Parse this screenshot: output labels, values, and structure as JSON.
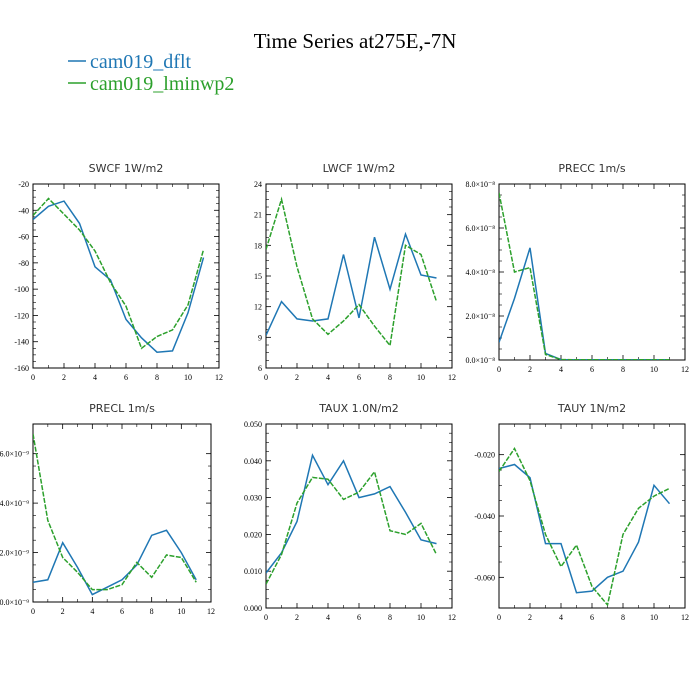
{
  "title": "Time Series at275E,-7N",
  "legend": [
    {
      "label": "cam019_dflt",
      "color": "#1f77b4"
    },
    {
      "label": "cam019_lminwp2",
      "color": "#2ca02c"
    }
  ],
  "chart_data": [
    {
      "type": "line",
      "title": "SWCF   1W/m2",
      "x": [
        0,
        1,
        2,
        3,
        4,
        5,
        6,
        7,
        8,
        9,
        10,
        11
      ],
      "xlim": [
        0,
        12
      ],
      "xticks": [
        0,
        2,
        4,
        6,
        8,
        10,
        12
      ],
      "ylim": [
        -160,
        -20
      ],
      "yticks": [
        -160,
        -140,
        -120,
        -100,
        -80,
        -60,
        -40,
        -20
      ],
      "ytick_labels": [
        "-160",
        "-140",
        "-120",
        "-100",
        "-80",
        "-60",
        "-40",
        "-20"
      ],
      "series": [
        {
          "name": "cam019_dflt",
          "values": [
            -47,
            -37,
            -33,
            -50,
            -83,
            -93,
            -123,
            -137,
            -148,
            -147,
            -118,
            -76
          ]
        },
        {
          "name": "cam019_lminwp2",
          "values": [
            -44,
            -31,
            -43,
            -55,
            -71,
            -95,
            -113,
            -145,
            -136,
            -131,
            -112,
            -70
          ]
        }
      ]
    },
    {
      "type": "line",
      "title": "LWCF   1W/m2",
      "x": [
        0,
        1,
        2,
        3,
        4,
        5,
        6,
        7,
        8,
        9,
        10,
        11
      ],
      "xlim": [
        0,
        12
      ],
      "xticks": [
        0,
        2,
        4,
        6,
        8,
        10,
        12
      ],
      "ylim": [
        6,
        24
      ],
      "yticks": [
        6,
        9,
        12,
        15,
        18,
        21,
        24
      ],
      "ytick_labels": [
        "6",
        "9",
        "12",
        "15",
        "18",
        "21",
        "24"
      ],
      "series": [
        {
          "name": "cam019_dflt",
          "values": [
            9.2,
            12.5,
            10.8,
            10.6,
            10.8,
            17.1,
            10.9,
            18.8,
            13.7,
            19.1,
            15.1,
            14.8
          ]
        },
        {
          "name": "cam019_lminwp2",
          "values": [
            17.6,
            22.5,
            15.9,
            10.8,
            9.3,
            10.6,
            12.2,
            10.1,
            8.2,
            18.0,
            17.1,
            12.5
          ]
        }
      ]
    },
    {
      "type": "line",
      "title": "PRECC   1m/s",
      "x": [
        0,
        1,
        2,
        3,
        4,
        5,
        6,
        7,
        8,
        9,
        10,
        11
      ],
      "xlim": [
        0,
        12
      ],
      "xticks": [
        0,
        2,
        4,
        6,
        8,
        10,
        12
      ],
      "ylim": [
        0,
        8e-08
      ],
      "yticks": [
        0,
        2e-08,
        4e-08,
        6e-08,
        8e-08
      ],
      "ytick_labels": [
        "0.0×10⁻⁸",
        "2.0×10⁻⁸",
        "4.0×10⁻⁸",
        "6.0×10⁻⁸",
        "8.0×10⁻⁸"
      ],
      "series": [
        {
          "name": "cam019_dflt",
          "values": [
            8e-09,
            2.8e-08,
            5.1e-08,
            3e-09,
            2e-10,
            1e-10,
            1e-10,
            1e-10,
            1e-10,
            1e-10,
            1e-10,
            1e-10
          ]
        },
        {
          "name": "cam019_lminwp2",
          "values": [
            7.6e-08,
            4e-08,
            4.2e-08,
            2.5e-09,
            2e-10,
            1e-10,
            1e-10,
            1e-10,
            1e-10,
            1e-10,
            1e-10,
            1e-10
          ]
        }
      ]
    },
    {
      "type": "line",
      "title": "PRECL   1m/s",
      "x": [
        0,
        1,
        2,
        3,
        4,
        5,
        6,
        7,
        8,
        9,
        10,
        11
      ],
      "xlim": [
        0,
        12
      ],
      "xticks": [
        0,
        2,
        4,
        6,
        8,
        10,
        12
      ],
      "ylim": [
        0,
        7.2e-09
      ],
      "yticks": [
        0,
        2e-09,
        4e-09,
        6e-09
      ],
      "ytick_labels": [
        "0.0×10⁻⁹",
        "2.0×10⁻⁹",
        "4.0×10⁻⁹",
        "6.0×10⁻⁹"
      ],
      "series": [
        {
          "name": "cam019_dflt",
          "values": [
            8e-10,
            9e-10,
            2.4e-09,
            1.4e-09,
            3e-10,
            6e-10,
            9e-10,
            1.5e-09,
            2.7e-09,
            2.9e-09,
            2e-09,
            9e-10
          ]
        },
        {
          "name": "cam019_lminwp2",
          "values": [
            6.8e-09,
            3.3e-09,
            1.8e-09,
            1.2e-09,
            5e-10,
            5e-10,
            7e-10,
            1.6e-09,
            1e-09,
            1.9e-09,
            1.8e-09,
            8e-10
          ]
        }
      ]
    },
    {
      "type": "line",
      "title": "TAUX   1.0N/m2",
      "x": [
        0,
        1,
        2,
        3,
        4,
        5,
        6,
        7,
        8,
        9,
        10,
        11
      ],
      "xlim": [
        0,
        12
      ],
      "xticks": [
        0,
        2,
        4,
        6,
        8,
        10,
        12
      ],
      "ylim": [
        0,
        0.05
      ],
      "yticks": [
        0,
        0.01,
        0.02,
        0.03,
        0.04,
        0.05
      ],
      "ytick_labels": [
        "0.000",
        "0.010",
        "0.020",
        "0.030",
        "0.040",
        "0.050"
      ],
      "series": [
        {
          "name": "cam019_dflt",
          "values": [
            0.0095,
            0.015,
            0.0235,
            0.0415,
            0.0335,
            0.04,
            0.03,
            0.031,
            0.033,
            0.026,
            0.0185,
            0.0175
          ]
        },
        {
          "name": "cam019_lminwp2",
          "values": [
            0.0065,
            0.0145,
            0.0285,
            0.0355,
            0.035,
            0.0295,
            0.0315,
            0.037,
            0.021,
            0.02,
            0.023,
            0.0145
          ]
        }
      ]
    },
    {
      "type": "line",
      "title": "TAUY   1N/m2",
      "x": [
        0,
        1,
        2,
        3,
        4,
        5,
        6,
        7,
        8,
        9,
        10,
        11
      ],
      "xlim": [
        0,
        12
      ],
      "xticks": [
        0,
        2,
        4,
        6,
        8,
        10,
        12
      ],
      "ylim": [
        -0.07,
        -0.01
      ],
      "yticks": [
        -0.06,
        -0.04,
        -0.02
      ],
      "ytick_labels": [
        "-0.060",
        "-0.040",
        "-0.020"
      ],
      "series": [
        {
          "name": "cam019_dflt",
          "values": [
            -0.0245,
            -0.0232,
            -0.0275,
            -0.049,
            -0.049,
            -0.065,
            -0.0645,
            -0.06,
            -0.058,
            -0.0485,
            -0.03,
            -0.036
          ]
        },
        {
          "name": "cam019_lminwp2",
          "values": [
            -0.0255,
            -0.018,
            -0.0285,
            -0.046,
            -0.0565,
            -0.0495,
            -0.063,
            -0.069,
            -0.046,
            -0.0375,
            -0.0335,
            -0.031
          ]
        }
      ]
    }
  ]
}
